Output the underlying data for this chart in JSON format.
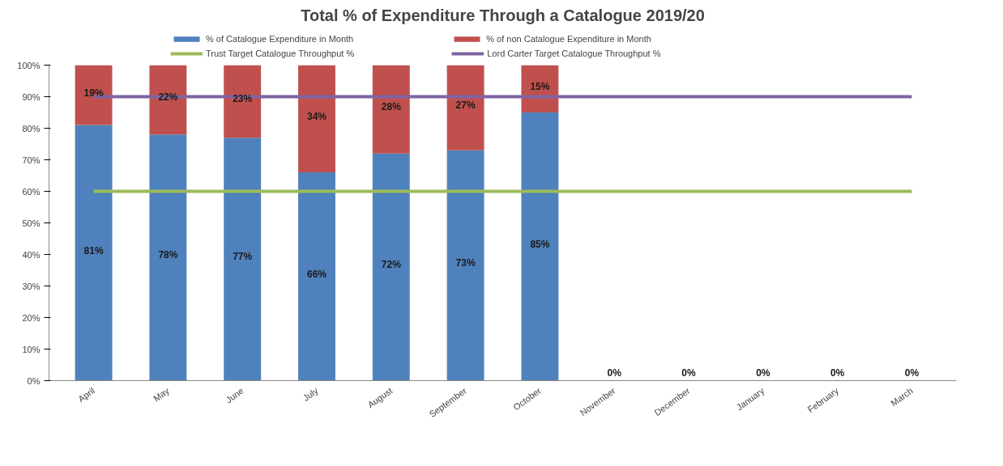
{
  "chart_data": {
    "type": "bar",
    "title": "Total % of Expenditure Through a Catalogue 2019/20",
    "categories": [
      "April",
      "May",
      "June",
      "July",
      "August",
      "September",
      "October",
      "November",
      "December",
      "January",
      "February",
      "March"
    ],
    "stacked": true,
    "series": [
      {
        "name": "% of Catalogue Expenditure in Month",
        "color": "#4f81bd",
        "values": [
          81,
          78,
          77,
          66,
          72,
          73,
          85,
          0,
          0,
          0,
          0,
          0
        ],
        "value_labels": [
          "81%",
          "78%",
          "77%",
          "66%",
          "72%",
          "73%",
          "85%",
          "0%",
          "0%",
          "0%",
          "0%",
          "0%"
        ]
      },
      {
        "name": "% of non Catalogue Expenditure in Month",
        "color": "#c0504d",
        "values": [
          19,
          22,
          23,
          34,
          28,
          27,
          15,
          null,
          null,
          null,
          null,
          null
        ],
        "value_labels": [
          "19%",
          "22%",
          "23%",
          "34%",
          "28%",
          "27%",
          "15%",
          null,
          null,
          null,
          null,
          null
        ]
      },
      {
        "name": "Trust Target Catalogue Throughput %",
        "type": "line",
        "color": "#9bbb59",
        "values": [
          60,
          60,
          60,
          60,
          60,
          60,
          60,
          60,
          60,
          60,
          60,
          60
        ]
      },
      {
        "name": "Lord Carter Target Catalogue Throughput %",
        "type": "line",
        "color": "#8064a2",
        "values": [
          90,
          90,
          90,
          90,
          90,
          90,
          90,
          90,
          90,
          90,
          90,
          90
        ]
      }
    ],
    "ylim": [
      0,
      100
    ],
    "yticks": [
      {
        "value": 0,
        "label": "0%"
      },
      {
        "value": 10,
        "label": "10%"
      },
      {
        "value": 20,
        "label": "20%"
      },
      {
        "value": 30,
        "label": "30%"
      },
      {
        "value": 40,
        "label": "40%"
      },
      {
        "value": 50,
        "label": "50%"
      },
      {
        "value": 60,
        "label": "60%"
      },
      {
        "value": 70,
        "label": "70%"
      },
      {
        "value": 80,
        "label": "80%"
      },
      {
        "value": 90,
        "label": "90%"
      },
      {
        "value": 100,
        "label": "100%"
      }
    ],
    "grid": false,
    "legend": "top",
    "marker": "none"
  }
}
